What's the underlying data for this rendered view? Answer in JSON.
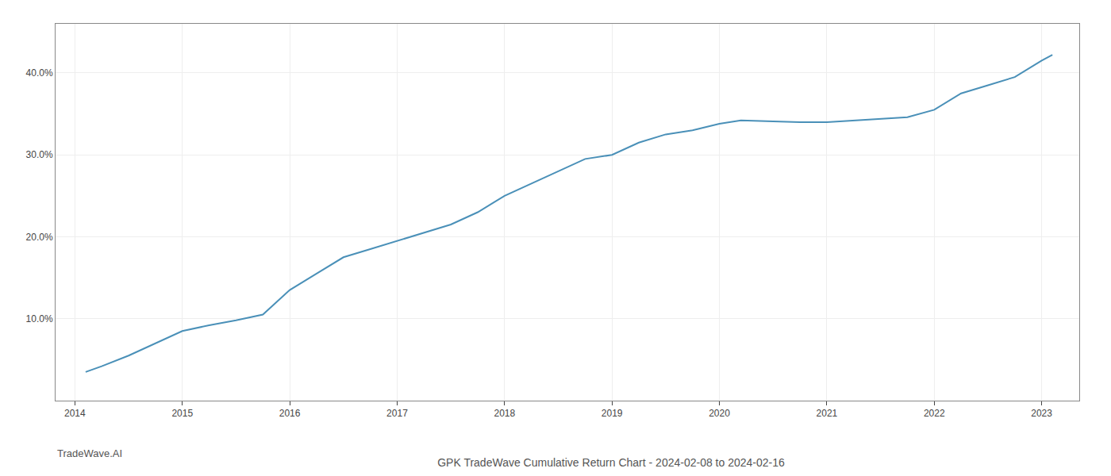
{
  "chart_data": {
    "type": "line",
    "title": "GPK TradeWave Cumulative Return Chart - 2024-02-08 to 2024-02-16",
    "annotations": [
      {
        "text": "TradeWave.AI"
      }
    ],
    "x": [
      2014.1,
      2014.25,
      2014.5,
      2014.75,
      2015.0,
      2015.25,
      2015.5,
      2015.75,
      2016.0,
      2016.25,
      2016.5,
      2016.75,
      2017.0,
      2017.25,
      2017.5,
      2017.75,
      2018.0,
      2018.25,
      2018.5,
      2018.75,
      2019.0,
      2019.25,
      2019.5,
      2019.75,
      2020.0,
      2020.1,
      2020.2,
      2020.5,
      2020.75,
      2021.0,
      2021.25,
      2021.5,
      2021.6,
      2021.75,
      2022.0,
      2022.25,
      2022.5,
      2022.75,
      2023.0,
      2023.1
    ],
    "values": [
      3.5,
      4.2,
      5.5,
      7.0,
      8.5,
      9.2,
      9.8,
      10.5,
      13.5,
      15.5,
      17.5,
      18.5,
      19.5,
      20.5,
      21.5,
      23.0,
      25.0,
      26.5,
      28.0,
      29.5,
      30.0,
      31.5,
      32.5,
      33.0,
      33.8,
      34.0,
      34.2,
      34.1,
      34.0,
      34.0,
      34.2,
      34.4,
      34.5,
      34.6,
      35.5,
      37.5,
      38.5,
      39.5,
      41.5,
      42.2
    ],
    "color": "#4a90b8",
    "xlim": [
      2013.82,
      2023.35
    ],
    "xticks": [
      2014,
      2015,
      2016,
      2017,
      2018,
      2019,
      2020,
      2021,
      2022,
      2023
    ],
    "ylim": [
      0,
      46
    ],
    "yticks": [
      {
        "value": 10.0,
        "label": "10.0%"
      },
      {
        "value": 20.0,
        "label": "20.0%"
      },
      {
        "value": 30.0,
        "label": "30.0%"
      },
      {
        "value": 40.0,
        "label": "40.0%"
      }
    ],
    "grid": true
  }
}
